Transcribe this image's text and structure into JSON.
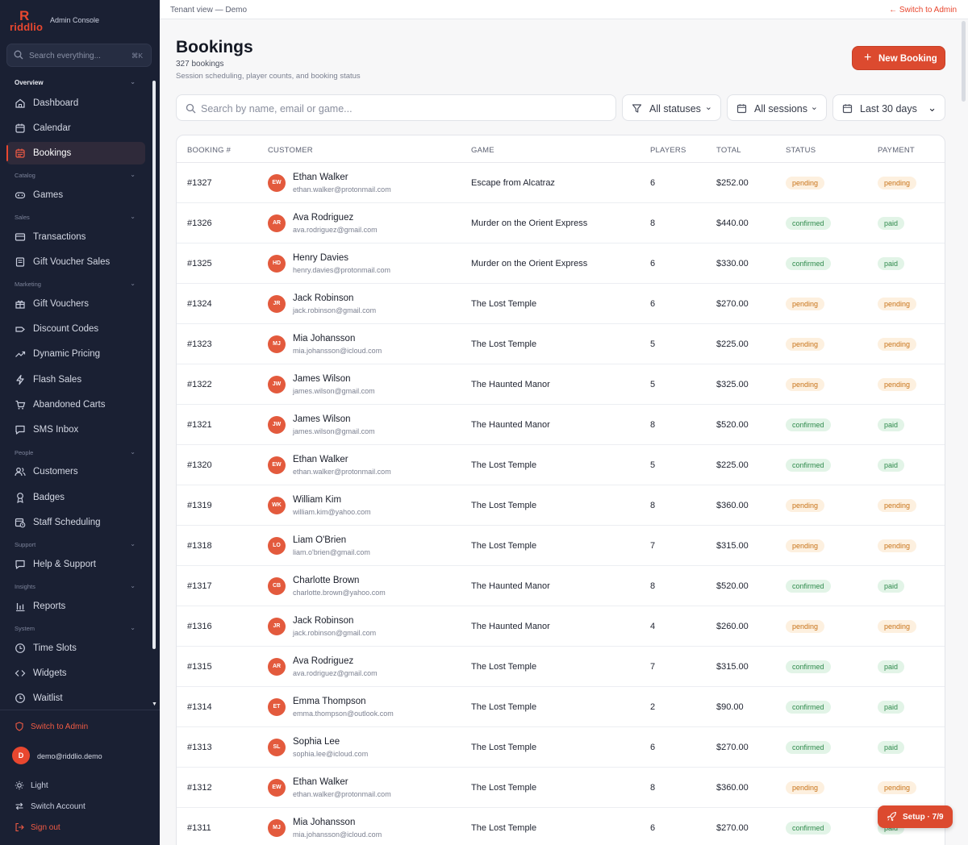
{
  "brand": {
    "mark": "R",
    "word": "riddlio",
    "subtitle": "Admin Console"
  },
  "sidebar": {
    "search_placeholder": "Search everything...",
    "search_shortcut": "⌘K",
    "sections": {
      "overview": "Overview",
      "catalog": "Catalog",
      "sales": "Sales",
      "marketing": "Marketing",
      "people": "People",
      "support": "Support",
      "insights": "Insights",
      "system": "System"
    },
    "items": {
      "dashboard": "Dashboard",
      "calendar": "Calendar",
      "bookings": "Bookings",
      "games": "Games",
      "transactions": "Transactions",
      "gift_voucher_sales": "Gift Voucher Sales",
      "gift_vouchers": "Gift Vouchers",
      "discount_codes": "Discount Codes",
      "dynamic_pricing": "Dynamic Pricing",
      "flash_sales": "Flash Sales",
      "abandoned_carts": "Abandoned Carts",
      "sms_inbox": "SMS Inbox",
      "customers": "Customers",
      "badges": "Badges",
      "staff_scheduling": "Staff Scheduling",
      "help_support": "Help & Support",
      "reports": "Reports",
      "time_slots": "Time Slots",
      "widgets": "Widgets",
      "waitlist": "Waitlist"
    },
    "footer": {
      "switch_admin": "Switch to Admin",
      "user_initial": "D",
      "user_email": "demo@riddlio.demo",
      "theme": "Light",
      "switch_account": "Switch Account",
      "sign_out": "Sign out"
    }
  },
  "topbar": {
    "breadcrumb": "Tenant view — Demo",
    "switch_link": "← Switch to Admin"
  },
  "header": {
    "title": "Bookings",
    "count": "327 bookings",
    "description": "Session scheduling, player counts, and booking status",
    "new_button": "New Booking"
  },
  "filters": {
    "search_placeholder": "Search by name, email or game...",
    "status": "All statuses",
    "sessions": "All sessions",
    "range": "Last 30 days"
  },
  "table": {
    "columns": [
      "BOOKING #",
      "CUSTOMER",
      "GAME",
      "PLAYERS",
      "TOTAL",
      "STATUS",
      "PAYMENT"
    ],
    "rows": [
      {
        "id": "#1327",
        "initials": "EW",
        "name": "Ethan Walker",
        "email": "ethan.walker@protonmail.com",
        "game": "Escape from Alcatraz",
        "players": "6",
        "total": "$252.00",
        "status": "pending",
        "payment": "pending"
      },
      {
        "id": "#1326",
        "initials": "AR",
        "name": "Ava Rodriguez",
        "email": "ava.rodriguez@gmail.com",
        "game": "Murder on the Orient Express",
        "players": "8",
        "total": "$440.00",
        "status": "confirmed",
        "payment": "paid"
      },
      {
        "id": "#1325",
        "initials": "HD",
        "name": "Henry Davies",
        "email": "henry.davies@protonmail.com",
        "game": "Murder on the Orient Express",
        "players": "6",
        "total": "$330.00",
        "status": "confirmed",
        "payment": "paid"
      },
      {
        "id": "#1324",
        "initials": "JR",
        "name": "Jack Robinson",
        "email": "jack.robinson@gmail.com",
        "game": "The Lost Temple",
        "players": "6",
        "total": "$270.00",
        "status": "pending",
        "payment": "pending"
      },
      {
        "id": "#1323",
        "initials": "MJ",
        "name": "Mia Johansson",
        "email": "mia.johansson@icloud.com",
        "game": "The Lost Temple",
        "players": "5",
        "total": "$225.00",
        "status": "pending",
        "payment": "pending"
      },
      {
        "id": "#1322",
        "initials": "JW",
        "name": "James Wilson",
        "email": "james.wilson@gmail.com",
        "game": "The Haunted Manor",
        "players": "5",
        "total": "$325.00",
        "status": "pending",
        "payment": "pending"
      },
      {
        "id": "#1321",
        "initials": "JW",
        "name": "James Wilson",
        "email": "james.wilson@gmail.com",
        "game": "The Haunted Manor",
        "players": "8",
        "total": "$520.00",
        "status": "confirmed",
        "payment": "paid"
      },
      {
        "id": "#1320",
        "initials": "EW",
        "name": "Ethan Walker",
        "email": "ethan.walker@protonmail.com",
        "game": "The Lost Temple",
        "players": "5",
        "total": "$225.00",
        "status": "confirmed",
        "payment": "paid"
      },
      {
        "id": "#1319",
        "initials": "WK",
        "name": "William Kim",
        "email": "william.kim@yahoo.com",
        "game": "The Lost Temple",
        "players": "8",
        "total": "$360.00",
        "status": "pending",
        "payment": "pending"
      },
      {
        "id": "#1318",
        "initials": "LO",
        "name": "Liam O'Brien",
        "email": "liam.o'brien@gmail.com",
        "game": "The Lost Temple",
        "players": "7",
        "total": "$315.00",
        "status": "pending",
        "payment": "pending"
      },
      {
        "id": "#1317",
        "initials": "CB",
        "name": "Charlotte Brown",
        "email": "charlotte.brown@yahoo.com",
        "game": "The Haunted Manor",
        "players": "8",
        "total": "$520.00",
        "status": "confirmed",
        "payment": "paid"
      },
      {
        "id": "#1316",
        "initials": "JR",
        "name": "Jack Robinson",
        "email": "jack.robinson@gmail.com",
        "game": "The Haunted Manor",
        "players": "4",
        "total": "$260.00",
        "status": "pending",
        "payment": "pending"
      },
      {
        "id": "#1315",
        "initials": "AR",
        "name": "Ava Rodriguez",
        "email": "ava.rodriguez@gmail.com",
        "game": "The Lost Temple",
        "players": "7",
        "total": "$315.00",
        "status": "confirmed",
        "payment": "paid"
      },
      {
        "id": "#1314",
        "initials": "ET",
        "name": "Emma Thompson",
        "email": "emma.thompson@outlook.com",
        "game": "The Lost Temple",
        "players": "2",
        "total": "$90.00",
        "status": "confirmed",
        "payment": "paid"
      },
      {
        "id": "#1313",
        "initials": "SL",
        "name": "Sophia Lee",
        "email": "sophia.lee@icloud.com",
        "game": "The Lost Temple",
        "players": "6",
        "total": "$270.00",
        "status": "confirmed",
        "payment": "paid"
      },
      {
        "id": "#1312",
        "initials": "EW",
        "name": "Ethan Walker",
        "email": "ethan.walker@protonmail.com",
        "game": "The Lost Temple",
        "players": "8",
        "total": "$360.00",
        "status": "pending",
        "payment": "pending"
      },
      {
        "id": "#1311",
        "initials": "MJ",
        "name": "Mia Johansson",
        "email": "mia.johansson@icloud.com",
        "game": "The Lost Temple",
        "players": "6",
        "total": "$270.00",
        "status": "confirmed",
        "payment": "paid"
      }
    ]
  },
  "setup": {
    "label": "Setup · 7/9"
  },
  "colors": {
    "accent": "#dc4a2f",
    "sidebar_bg": "#1a2033",
    "pending_text": "#c8741a",
    "confirmed_text": "#2f8a4c"
  }
}
